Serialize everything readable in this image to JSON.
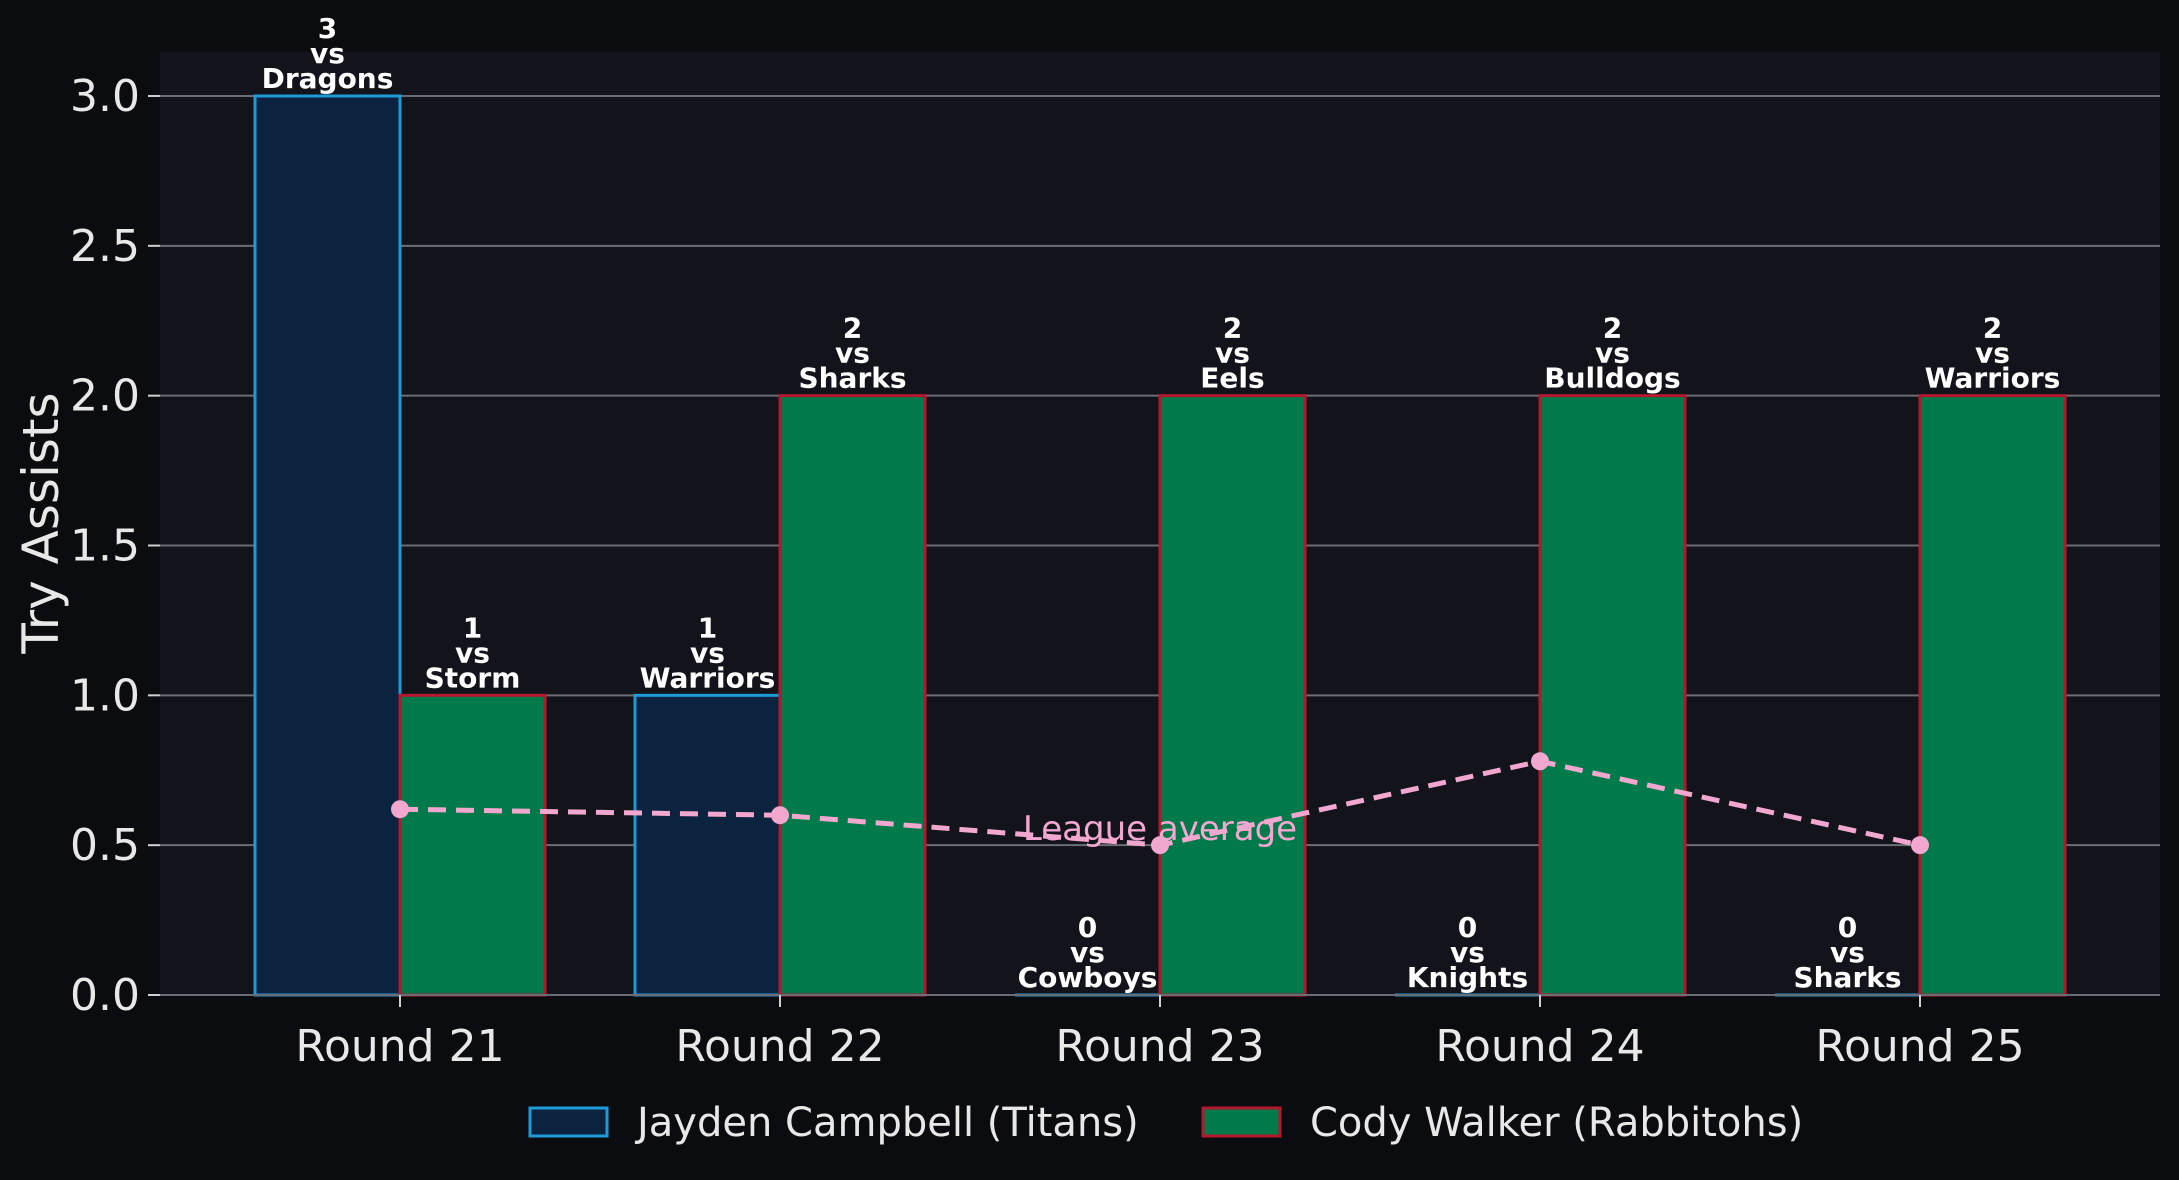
{
  "chart_data": {
    "type": "bar",
    "title": "",
    "xlabel": "",
    "ylabel": "Try Assists",
    "categories": [
      "Round 21",
      "Round 22",
      "Round 23",
      "Round 24",
      "Round 25"
    ],
    "ylim": [
      0,
      3.15
    ],
    "yticks": [
      "0.0",
      "0.5",
      "1.0",
      "1.5",
      "2.0",
      "2.5",
      "3.0"
    ],
    "grid": "horizontal",
    "legend_position": "bottom-center",
    "series": [
      {
        "name": "Jayden Campbell (Titans)",
        "values": [
          3,
          1,
          0,
          0,
          0
        ],
        "opponents": [
          "Dragons",
          "Warriors",
          "Cowboys",
          "Knights",
          "Sharks"
        ],
        "fill": "#0c2340",
        "edge": "#1e9ad6"
      },
      {
        "name": "Cody Walker (Rabbitohs)",
        "values": [
          1,
          2,
          2,
          2,
          2
        ],
        "opponents": [
          "Storm",
          "Sharks",
          "Eels",
          "Bulldogs",
          "Warriors"
        ],
        "fill": "#007a4a",
        "edge": "#b5172e"
      }
    ],
    "league_average": {
      "label": "League average",
      "values": [
        0.62,
        0.6,
        0.5,
        0.78,
        0.5
      ],
      "color": "#f2a7cf"
    },
    "bar_label_connector": "vs"
  }
}
